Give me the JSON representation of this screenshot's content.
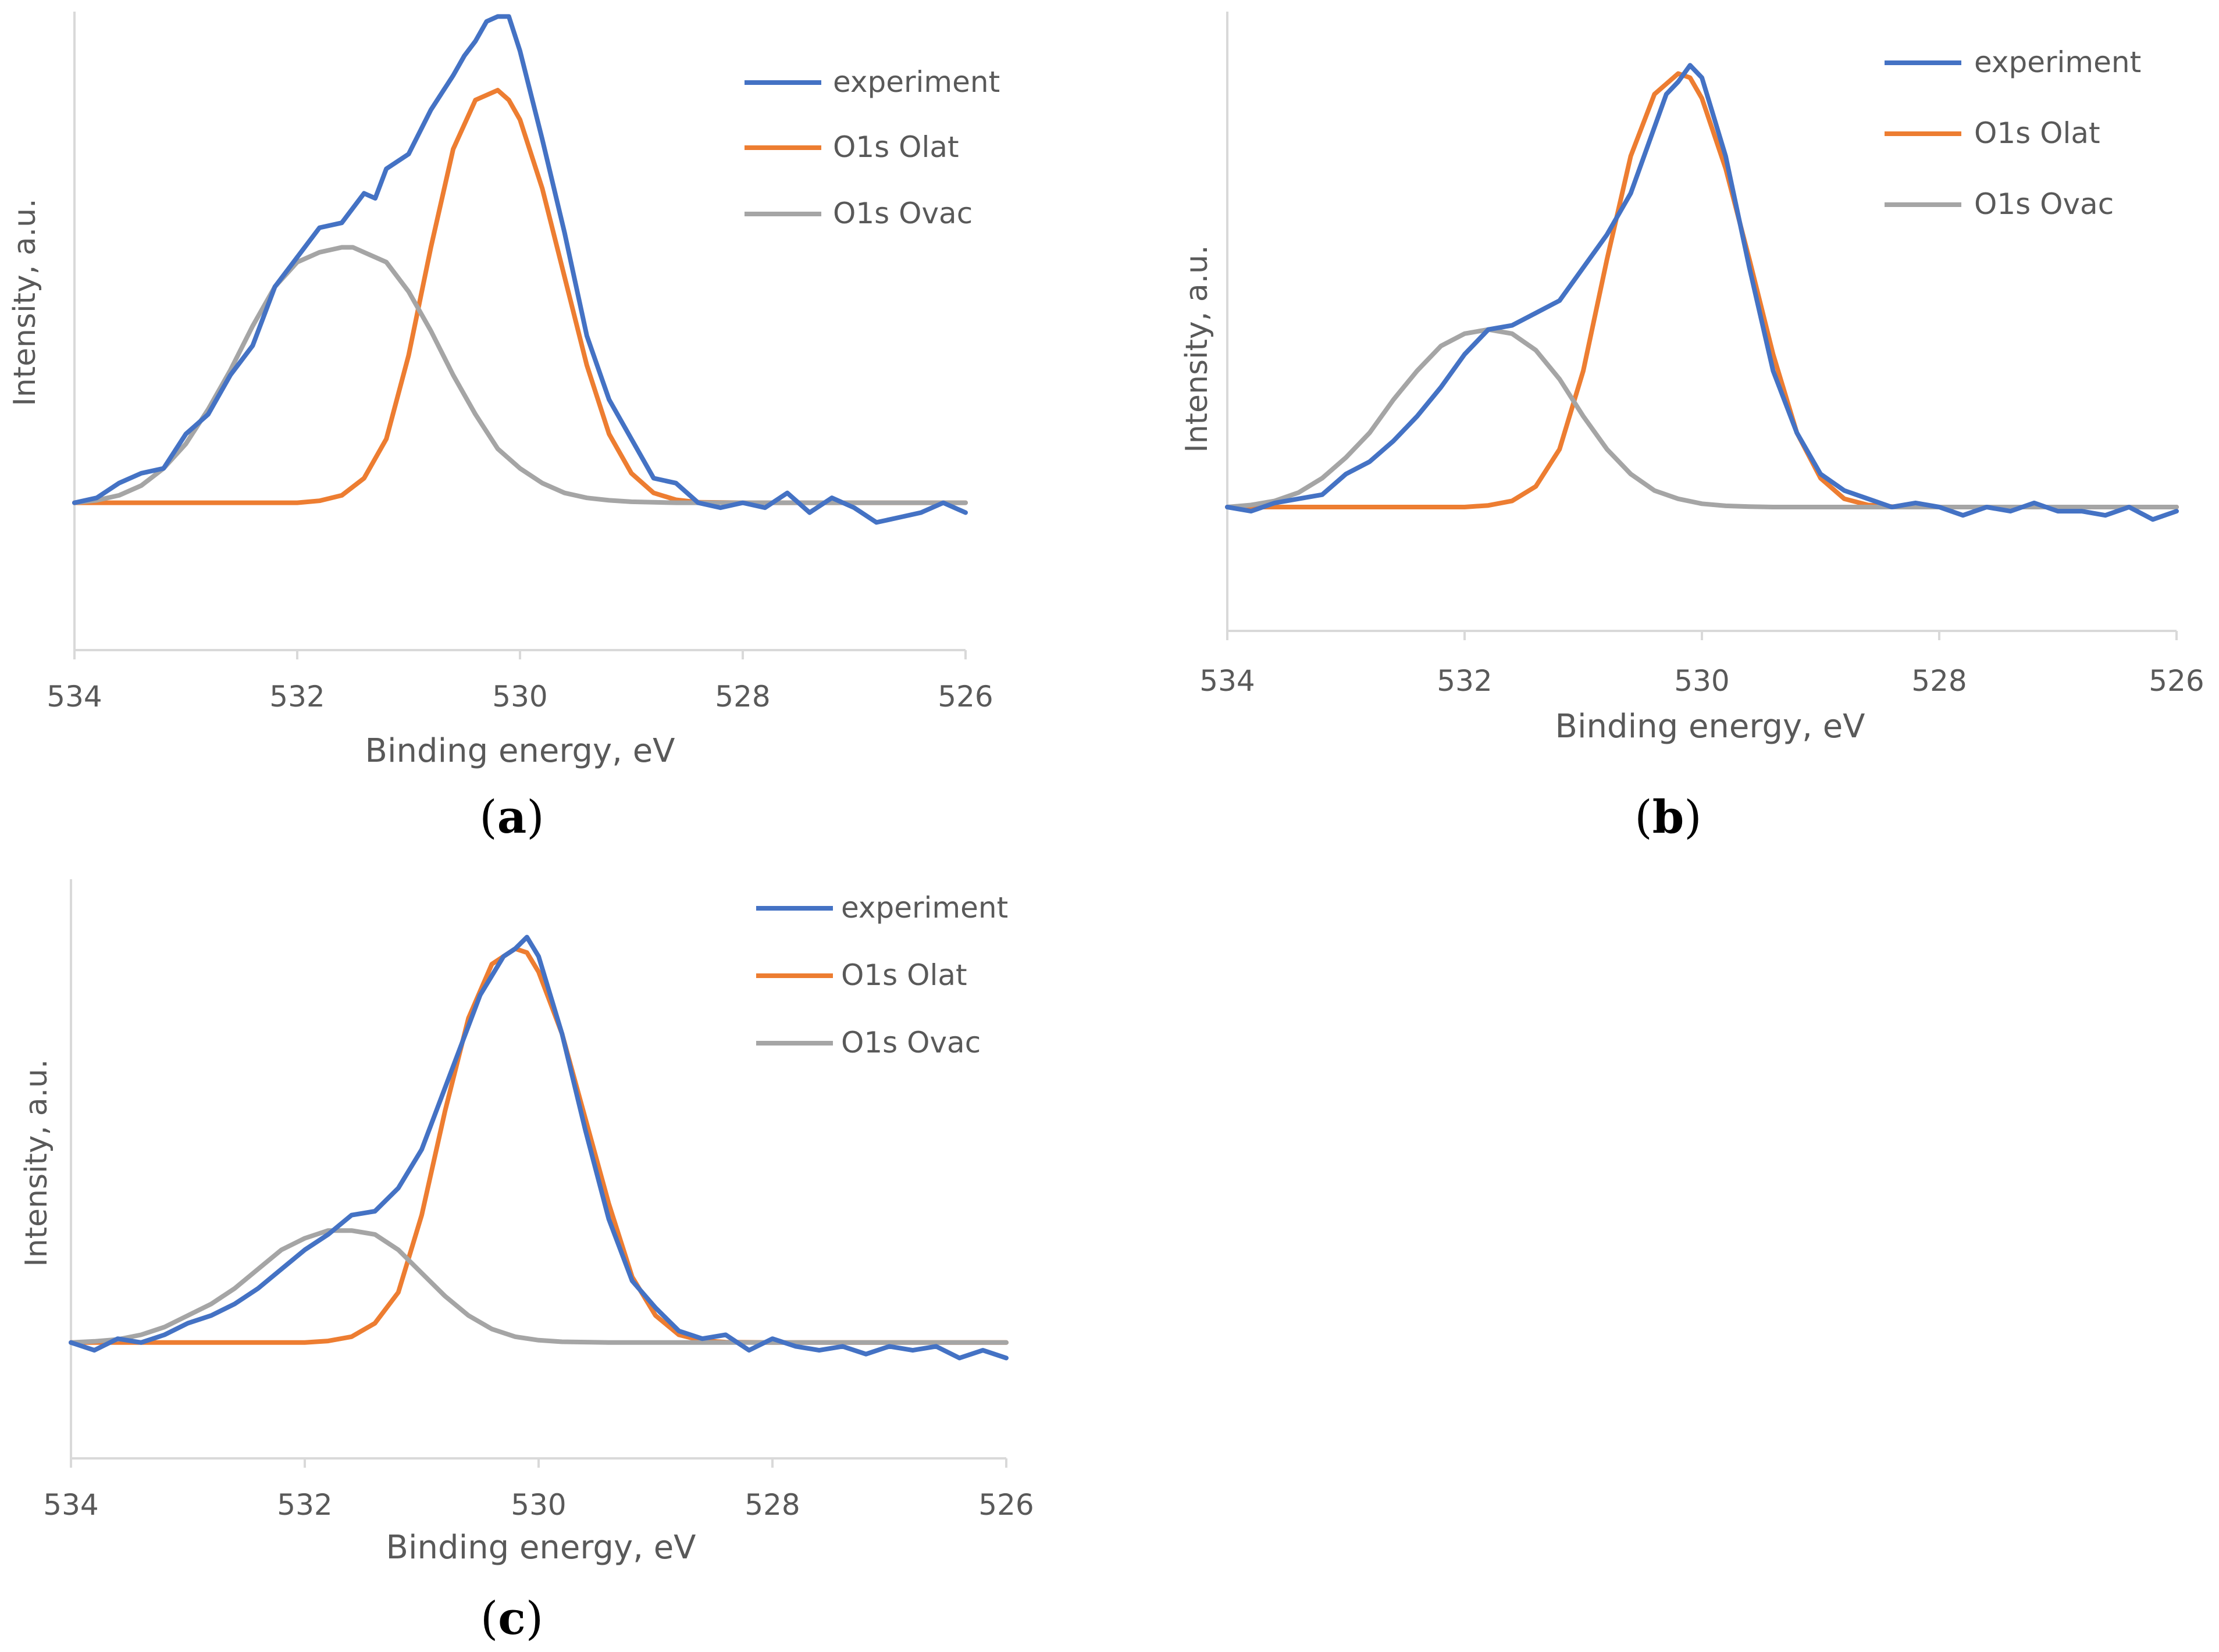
{
  "colors": {
    "experiment": "#4472C4",
    "olat": "#ED7D31",
    "ovac": "#A5A5A5",
    "axis": "#D9D9D9",
    "text": "#595959"
  },
  "chart_data": [
    {
      "type": "line",
      "panel": "a",
      "panel_label": {
        "open": "(",
        "letter": "a",
        "close": ")"
      },
      "xlabel": "Binding energy, eV",
      "ylabel": "Intensity, a.u.",
      "xlim": [
        534,
        526
      ],
      "ylim": [
        -0.3,
        1.0
      ],
      "xticks": [
        "534",
        "532",
        "530",
        "528",
        "526"
      ],
      "legend": [
        "experiment",
        "O1s Olat",
        "O1s Ovac"
      ],
      "series": [
        {
          "name": "experiment",
          "color": "#4472C4",
          "x": [
            534.0,
            533.8,
            533.6,
            533.4,
            533.2,
            533.0,
            532.8,
            532.6,
            532.4,
            532.2,
            532.0,
            531.8,
            531.6,
            531.4,
            531.3,
            531.2,
            531.0,
            530.8,
            530.6,
            530.5,
            530.4,
            530.3,
            530.2,
            530.1,
            530.0,
            529.8,
            529.6,
            529.4,
            529.2,
            529.0,
            528.8,
            528.6,
            528.4,
            528.2,
            528.0,
            527.8,
            527.6,
            527.4,
            527.2,
            527.0,
            526.8,
            526.6,
            526.4,
            526.2,
            526.0
          ],
          "y": [
            0.0,
            0.01,
            0.04,
            0.06,
            0.07,
            0.14,
            0.18,
            0.26,
            0.32,
            0.44,
            0.5,
            0.56,
            0.57,
            0.63,
            0.62,
            0.68,
            0.71,
            0.8,
            0.87,
            0.91,
            0.94,
            0.98,
            0.99,
            0.99,
            0.92,
            0.74,
            0.55,
            0.34,
            0.21,
            0.13,
            0.05,
            0.04,
            0.0,
            -0.01,
            0.0,
            -0.01,
            0.02,
            -0.02,
            0.01,
            -0.01,
            -0.04,
            -0.03,
            -0.02,
            0.0,
            -0.02
          ]
        },
        {
          "name": "O1s Olat",
          "color": "#ED7D31",
          "x": [
            534.0,
            533.6,
            533.2,
            532.8,
            532.4,
            532.0,
            531.8,
            531.6,
            531.4,
            531.2,
            531.0,
            530.8,
            530.6,
            530.4,
            530.2,
            530.1,
            530.0,
            529.8,
            529.6,
            529.4,
            529.2,
            529.0,
            528.8,
            528.6,
            528.4,
            528.0,
            527.6,
            527.2,
            526.8,
            526.4,
            526.0
          ],
          "y": [
            0,
            0,
            0,
            0,
            0,
            0,
            0.004,
            0.015,
            0.05,
            0.13,
            0.3,
            0.52,
            0.72,
            0.82,
            0.84,
            0.82,
            0.78,
            0.64,
            0.46,
            0.28,
            0.14,
            0.06,
            0.02,
            0.006,
            0.001,
            0,
            0,
            0,
            0,
            0,
            0
          ]
        },
        {
          "name": "O1s Ovac",
          "color": "#A5A5A5",
          "x": [
            534.0,
            533.8,
            533.6,
            533.4,
            533.2,
            533.0,
            532.8,
            532.6,
            532.4,
            532.2,
            532.0,
            531.8,
            531.6,
            531.5,
            531.4,
            531.2,
            531.0,
            530.8,
            530.6,
            530.4,
            530.2,
            530.0,
            529.8,
            529.6,
            529.4,
            529.2,
            529.0,
            528.8,
            528.6,
            528.4,
            528.0,
            527.6,
            527.2,
            526.8,
            526.4,
            526.0
          ],
          "y": [
            0.0,
            0.005,
            0.015,
            0.035,
            0.07,
            0.12,
            0.19,
            0.27,
            0.36,
            0.44,
            0.49,
            0.51,
            0.52,
            0.52,
            0.51,
            0.49,
            0.43,
            0.35,
            0.26,
            0.18,
            0.11,
            0.07,
            0.04,
            0.02,
            0.01,
            0.005,
            0.002,
            0.001,
            0.0,
            0,
            0,
            0,
            0,
            0,
            0,
            0
          ]
        }
      ]
    },
    {
      "type": "line",
      "panel": "b",
      "panel_label": {
        "open": "(",
        "letter": "b",
        "close": ")"
      },
      "xlabel": "Binding energy, eV",
      "ylabel": "Intensity, a.u.",
      "xlim": [
        534,
        526
      ],
      "ylim": [
        -0.3,
        1.2
      ],
      "xticks": [
        "534",
        "532",
        "530",
        "528",
        "526"
      ],
      "legend": [
        "experiment",
        "O1s Olat",
        "O1s Ovac"
      ],
      "series": [
        {
          "name": "experiment",
          "color": "#4472C4",
          "x": [
            534.0,
            533.8,
            533.6,
            533.4,
            533.2,
            533.0,
            532.8,
            532.6,
            532.4,
            532.2,
            532.0,
            531.8,
            531.6,
            531.4,
            531.2,
            531.0,
            530.8,
            530.6,
            530.5,
            530.4,
            530.3,
            530.2,
            530.1,
            530.0,
            529.8,
            529.6,
            529.4,
            529.2,
            529.0,
            528.8,
            528.6,
            528.4,
            528.2,
            528.0,
            527.8,
            527.6,
            527.4,
            527.2,
            527.0,
            526.8,
            526.6,
            526.4,
            526.2,
            526.0
          ],
          "y": [
            0.0,
            -0.01,
            0.01,
            0.02,
            0.03,
            0.08,
            0.11,
            0.16,
            0.22,
            0.29,
            0.37,
            0.43,
            0.44,
            0.47,
            0.5,
            0.58,
            0.66,
            0.76,
            0.84,
            0.92,
            1.0,
            1.03,
            1.07,
            1.04,
            0.85,
            0.58,
            0.33,
            0.18,
            0.08,
            0.04,
            0.02,
            0.0,
            0.01,
            0.0,
            -0.02,
            0.0,
            -0.01,
            0.01,
            -0.01,
            -0.01,
            -0.02,
            0.0,
            -0.03,
            -0.01
          ]
        },
        {
          "name": "O1s Olat",
          "color": "#ED7D31",
          "x": [
            534.0,
            533.6,
            533.2,
            532.8,
            532.4,
            532.0,
            531.8,
            531.6,
            531.4,
            531.2,
            531.0,
            530.8,
            530.6,
            530.4,
            530.2,
            530.1,
            530.0,
            529.8,
            529.6,
            529.4,
            529.2,
            529.0,
            528.8,
            528.6,
            528.4,
            528.0,
            527.6,
            527.2,
            526.8,
            526.4,
            526.0
          ],
          "y": [
            0,
            0,
            0,
            0,
            0,
            0,
            0.004,
            0.015,
            0.05,
            0.14,
            0.33,
            0.6,
            0.85,
            1.0,
            1.05,
            1.04,
            0.99,
            0.82,
            0.6,
            0.37,
            0.18,
            0.07,
            0.02,
            0.005,
            0.001,
            0,
            0,
            0,
            0,
            0,
            0
          ]
        },
        {
          "name": "O1s Ovac",
          "color": "#A5A5A5",
          "x": [
            534.0,
            533.8,
            533.6,
            533.4,
            533.2,
            533.0,
            532.8,
            532.6,
            532.4,
            532.2,
            532.0,
            531.8,
            531.6,
            531.4,
            531.2,
            531.0,
            530.8,
            530.6,
            530.4,
            530.2,
            530.0,
            529.8,
            529.6,
            529.4,
            529.2,
            529.0,
            528.8,
            528.6,
            528.4,
            528.0,
            527.6,
            527.2,
            526.8,
            526.4,
            526.0
          ],
          "y": [
            0.0,
            0.005,
            0.015,
            0.035,
            0.07,
            0.12,
            0.18,
            0.26,
            0.33,
            0.39,
            0.42,
            0.43,
            0.42,
            0.38,
            0.31,
            0.22,
            0.14,
            0.08,
            0.04,
            0.02,
            0.008,
            0.003,
            0.001,
            0,
            0,
            0,
            0,
            0,
            0,
            0,
            0,
            0,
            0,
            0,
            0
          ]
        }
      ]
    },
    {
      "type": "line",
      "panel": "c",
      "panel_label": {
        "open": "(",
        "letter": "c",
        "close": ")"
      },
      "xlabel": "Binding energy, eV",
      "ylabel": "Intensity, a.u.",
      "xlim": [
        534,
        526
      ],
      "ylim": [
        -0.3,
        1.2
      ],
      "xticks": [
        "534",
        "532",
        "530",
        "528",
        "526"
      ],
      "legend": [
        "experiment",
        "O1s Olat",
        "O1s Ovac"
      ],
      "series": [
        {
          "name": "experiment",
          "color": "#4472C4",
          "x": [
            534.0,
            533.8,
            533.6,
            533.4,
            533.2,
            533.0,
            532.8,
            532.6,
            532.4,
            532.2,
            532.0,
            531.8,
            531.6,
            531.4,
            531.2,
            531.0,
            530.8,
            530.6,
            530.5,
            530.4,
            530.3,
            530.2,
            530.1,
            530.0,
            529.8,
            529.6,
            529.4,
            529.2,
            529.0,
            528.8,
            528.6,
            528.4,
            528.2,
            528.0,
            527.8,
            527.6,
            527.4,
            527.2,
            527.0,
            526.8,
            526.6,
            526.4,
            526.2,
            526.0
          ],
          "y": [
            0.0,
            -0.02,
            0.01,
            0.0,
            0.02,
            0.05,
            0.07,
            0.1,
            0.14,
            0.19,
            0.24,
            0.28,
            0.33,
            0.34,
            0.4,
            0.5,
            0.66,
            0.82,
            0.9,
            0.95,
            1.0,
            1.02,
            1.05,
            1.0,
            0.8,
            0.55,
            0.32,
            0.16,
            0.09,
            0.03,
            0.01,
            0.02,
            -0.02,
            0.01,
            -0.01,
            -0.02,
            -0.01,
            -0.03,
            -0.01,
            -0.02,
            -0.01,
            -0.04,
            -0.02,
            -0.04
          ]
        },
        {
          "name": "O1s Olat",
          "color": "#ED7D31",
          "x": [
            534.0,
            533.6,
            533.2,
            532.8,
            532.4,
            532.0,
            531.8,
            531.6,
            531.4,
            531.2,
            531.0,
            530.8,
            530.6,
            530.4,
            530.2,
            530.1,
            530.0,
            529.8,
            529.6,
            529.4,
            529.2,
            529.0,
            528.8,
            528.6,
            528.4,
            528.0,
            527.6,
            527.2,
            526.8,
            526.4,
            526.0
          ],
          "y": [
            0,
            0,
            0,
            0,
            0,
            0,
            0.004,
            0.015,
            0.05,
            0.13,
            0.33,
            0.6,
            0.84,
            0.98,
            1.02,
            1.01,
            0.96,
            0.8,
            0.58,
            0.36,
            0.17,
            0.07,
            0.02,
            0.005,
            0.001,
            0,
            0,
            0,
            0,
            0,
            0
          ]
        },
        {
          "name": "O1s Ovac",
          "color": "#A5A5A5",
          "x": [
            534.0,
            533.8,
            533.6,
            533.4,
            533.2,
            533.0,
            532.8,
            532.6,
            532.4,
            532.2,
            532.0,
            531.8,
            531.6,
            531.4,
            531.2,
            531.0,
            530.8,
            530.6,
            530.4,
            530.2,
            530.0,
            529.8,
            529.6,
            529.4,
            529.2,
            529.0,
            528.8,
            528.6,
            528.4,
            528.0,
            527.6,
            527.2,
            526.8,
            526.4,
            526.0
          ],
          "y": [
            0.0,
            0.003,
            0.008,
            0.02,
            0.04,
            0.07,
            0.1,
            0.14,
            0.19,
            0.24,
            0.27,
            0.29,
            0.29,
            0.28,
            0.24,
            0.18,
            0.12,
            0.07,
            0.035,
            0.015,
            0.006,
            0.002,
            0.001,
            0,
            0,
            0,
            0,
            0,
            0,
            0,
            0,
            0,
            0,
            0,
            0
          ]
        }
      ]
    }
  ]
}
